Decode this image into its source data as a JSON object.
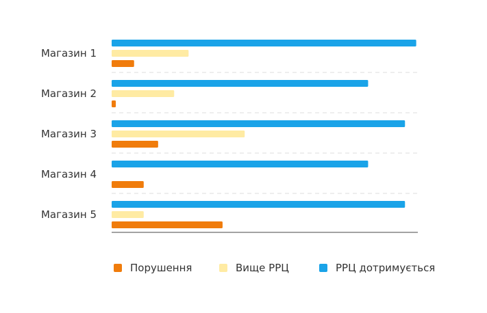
{
  "chart_data": {
    "type": "bar",
    "orientation": "horizontal",
    "categories": [
      "Магазин 1",
      "Магазин 2",
      "Магазин 3",
      "Магазин 4",
      "Магазин 5"
    ],
    "series": [
      {
        "name": "РРЦ дотримується",
        "color": "#1AA3E8",
        "values": [
          95,
          80,
          91.5,
          80,
          91.5
        ]
      },
      {
        "name": "Вище РРЦ",
        "color": "#FFEBA3",
        "values": [
          24,
          19.5,
          41.5,
          0,
          10
        ]
      },
      {
        "name": "Порушення",
        "color": "#F07C0C",
        "values": [
          7,
          1.3,
          14.5,
          10,
          34.6
        ]
      }
    ],
    "xlim": [
      0,
      95.5
    ],
    "grid": "dashed separators between categories",
    "legend": "bottom",
    "legend_order": [
      "Порушення",
      "Вище РРЦ",
      "РРЦ дотримується"
    ]
  }
}
